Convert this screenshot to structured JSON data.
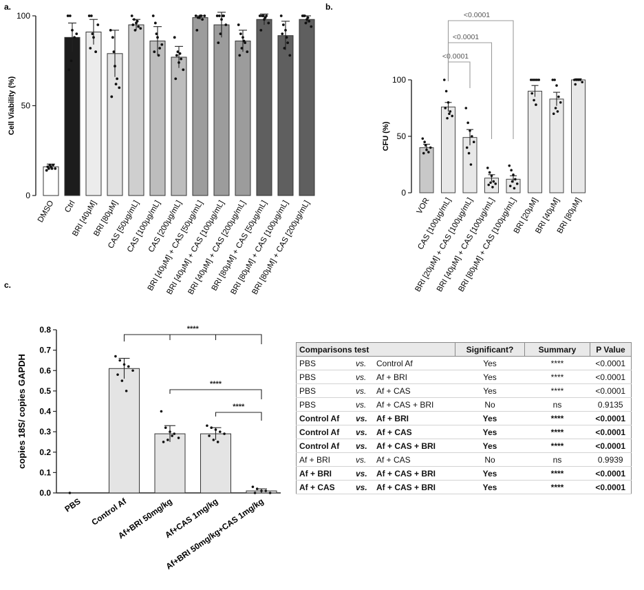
{
  "chart_data": [
    {
      "panel": "a.",
      "type": "bar",
      "ylabel": "Cell Viability (%)",
      "ylim": [
        0,
        100
      ],
      "yticks": [
        0,
        50,
        100
      ],
      "categories": [
        "DMSO",
        "Ctrl",
        "BRI [40μM]",
        "BRI [80μM]",
        "CAS [50μg/mL]",
        "CAS [100μg/mL]",
        "CAS [200μg/mL]",
        "BRI [40μM] + CAS [50μg/mL]",
        "BRI [40μM] + CAS [100μg/mL]",
        "BRI [40μM] + CAS [200μg/mL]",
        "BRI [80μM] + CAS [50μg/mL]",
        "BRI [80μM] + CAS [100μg/mL]",
        "BRI [80μM] + CAS [200μg/mL]"
      ],
      "values": [
        16,
        88,
        91,
        79,
        95,
        86,
        77,
        99,
        95,
        86,
        98,
        89,
        98
      ],
      "errors": [
        1.5,
        8,
        7,
        13,
        3,
        8,
        6,
        1,
        7,
        6,
        3,
        8,
        2
      ],
      "points": [
        [
          14,
          15,
          16,
          17,
          15,
          16,
          17,
          15
        ],
        [
          100,
          100,
          92,
          88,
          90,
          70,
          75
        ],
        [
          100,
          100,
          88,
          80,
          95,
          82,
          90
        ],
        [
          92,
          88,
          72,
          65,
          60,
          55,
          80,
          62
        ],
        [
          100,
          98,
          96,
          94,
          93,
          95,
          92,
          97
        ],
        [
          100,
          96,
          88,
          82,
          84,
          80,
          90,
          78
        ],
        [
          88,
          78,
          74,
          76,
          70,
          65,
          80,
          79
        ],
        [
          100,
          99,
          100,
          98,
          100,
          92,
          99,
          100
        ],
        [
          100,
          100,
          98,
          100,
          95,
          85,
          90,
          100
        ],
        [
          95,
          90,
          88,
          85,
          80,
          78,
          82,
          86
        ],
        [
          100,
          100,
          98,
          100,
          96,
          92,
          100,
          99
        ],
        [
          100,
          95,
          92,
          85,
          78,
          90,
          82,
          88
        ],
        [
          100,
          100,
          98,
          97,
          94,
          100,
          96,
          99
        ]
      ],
      "fills": [
        "#ffffff",
        "#1c1c1c",
        "#ececec",
        "#e2e2e2",
        "#cfcfcf",
        "#bdbdbd",
        "#bdbdbd",
        "#9c9c9c",
        "#9c9c9c",
        "#9c9c9c",
        "#5f5f5f",
        "#5f5f5f",
        "#5f5f5f"
      ]
    },
    {
      "panel": "b.",
      "type": "bar",
      "ylabel": "CFU (%)",
      "ylim": [
        0,
        100
      ],
      "yticks": [
        0,
        50,
        100
      ],
      "categories": [
        "VOR",
        "CAS [100μg/mL]",
        "BRI [20μM] + CAS [100μg/mL]",
        "BRI [40μM] + CAS [100μg/mL]",
        "BRI [80μM] + CAS [100μg/mL]",
        "BRI [20μM]",
        "BRI [40μM]",
        "BRI [80μM]"
      ],
      "values": [
        40,
        76,
        49,
        13,
        12,
        90,
        83,
        100
      ],
      "errors": [
        3,
        4,
        7,
        3,
        3,
        5,
        6,
        1
      ],
      "points": [
        [
          48,
          45,
          38,
          36,
          40,
          35,
          42
        ],
        [
          100,
          90,
          80,
          72,
          68,
          75,
          66,
          70
        ],
        [
          75,
          62,
          55,
          50,
          45,
          40,
          35,
          25
        ],
        [
          22,
          18,
          15,
          10,
          8,
          7,
          9,
          5
        ],
        [
          24,
          20,
          16,
          12,
          8,
          6,
          10,
          4
        ],
        [
          100,
          100,
          100,
          100,
          100,
          88,
          82,
          78
        ],
        [
          100,
          100,
          95,
          85,
          80,
          70,
          75,
          72
        ],
        [
          100,
          100,
          100,
          100,
          98,
          96
        ]
      ],
      "fills": [
        "#c8c8c8",
        "#e8e8e8",
        "#e8e8e8",
        "#e8e8e8",
        "#e8e8e8",
        "#e8e8e8",
        "#e8e8e8",
        "#e8e8e8"
      ],
      "comparisons": [
        {
          "from": 1,
          "to": 2,
          "label": "<0.0001"
        },
        {
          "from": 1,
          "to": 3,
          "label": "<0.0001"
        },
        {
          "from": 1,
          "to": 4,
          "label": "<0.0001"
        }
      ]
    },
    {
      "panel": "c.",
      "type": "bar",
      "ylabel": "copies 18S/ copies GAPDH",
      "ylim": [
        0,
        0.8
      ],
      "yticks": [
        "0.0",
        "0.1",
        "0.2",
        "0.3",
        "0.4",
        "0.5",
        "0.6",
        "0.7",
        "0.8"
      ],
      "categories": [
        "PBS",
        "Control Af",
        "Af+BRI 50mg/kg",
        "Af+CAS 1mg/kg",
        "Af+BRI 50mg/kg+CAS 1mg/kg"
      ],
      "values": [
        0,
        0.61,
        0.29,
        0.29,
        0.01
      ],
      "errors": [
        0,
        0.05,
        0.04,
        0.03,
        0.01
      ],
      "points": [
        [
          0.0
        ],
        [
          0.67,
          0.65,
          0.63,
          0.62,
          0.6,
          0.58,
          0.55,
          0.5
        ],
        [
          0.4,
          0.32,
          0.3,
          0.29,
          0.27,
          0.25,
          0.26,
          0.28
        ],
        [
          0.33,
          0.32,
          0.31,
          0.3,
          0.29,
          0.28,
          0.26,
          0.25
        ],
        [
          0.03,
          0.02,
          0.01,
          0.01,
          0.0,
          0.0
        ]
      ],
      "fills": [
        "#e4e4e4",
        "#e4e4e4",
        "#e4e4e4",
        "#e4e4e4",
        "#e4e4e4"
      ],
      "comparisons": [
        {
          "from": 1,
          "to": 4,
          "label": "****",
          "extra_drops": [
            2,
            3
          ]
        },
        {
          "from": 2,
          "to": 4,
          "label": "****"
        },
        {
          "from": 3,
          "to": 4,
          "label": "****"
        }
      ]
    },
    {
      "panel": "c.",
      "type": "table",
      "headers": [
        "Comparisons test",
        "Significant?",
        "Summary",
        "P Value"
      ],
      "rows": [
        {
          "a": "PBS",
          "b": "Control  Af",
          "sig": "Yes",
          "sum": "****",
          "p": "<0.0001",
          "bold": false,
          "sep": false
        },
        {
          "a": "PBS",
          "b": "Af + BRI",
          "sig": "Yes",
          "sum": "****",
          "p": "<0.0001",
          "bold": false,
          "sep": false
        },
        {
          "a": "PBS",
          "b": "Af + CAS",
          "sig": "Yes",
          "sum": "****",
          "p": "<0.0001",
          "bold": false,
          "sep": false
        },
        {
          "a": "PBS",
          "b": "Af + CAS + BRI",
          "sig": "No",
          "sum": "ns",
          "p": "0.9135",
          "bold": false,
          "sep": false
        },
        {
          "a": "Control  Af",
          "b": "Af + BRI",
          "sig": "Yes",
          "sum": "****",
          "p": "<0.0001",
          "bold": true,
          "sep": true
        },
        {
          "a": "Control  Af",
          "b": "Af + CAS",
          "sig": "Yes",
          "sum": "****",
          "p": "<0.0001",
          "bold": true,
          "sep": false
        },
        {
          "a": "Control  Af",
          "b": "Af + CAS + BRI",
          "sig": "Yes",
          "sum": "****",
          "p": "<0.0001",
          "bold": true,
          "sep": false
        },
        {
          "a": "Af + BRI",
          "b": "Af + CAS",
          "sig": "No",
          "sum": "ns",
          "p": "0.9939",
          "bold": false,
          "sep": true
        },
        {
          "a": "Af + BRI",
          "b": "Af + CAS + BRI",
          "sig": "Yes",
          "sum": "****",
          "p": "<0.0001",
          "bold": true,
          "sep": false
        },
        {
          "a": "Af + CAS",
          "b": "Af + CAS + BRI",
          "sig": "Yes",
          "sum": "****",
          "p": "<0.0001",
          "bold": true,
          "sep": false
        }
      ]
    }
  ],
  "vs_label": "vs."
}
